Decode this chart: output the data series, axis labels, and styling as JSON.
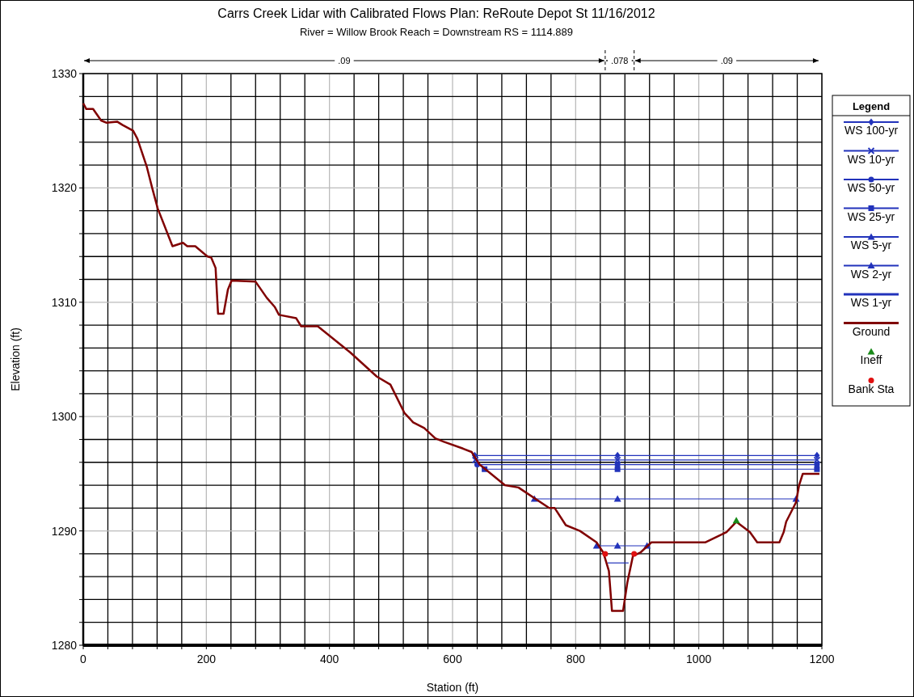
{
  "chart_data": {
    "type": "line",
    "title": "Carrs Creek Lidar with Calibrated Flows       Plan: ReRoute Depot St     11/16/2012",
    "subtitle": "River = Willow Brook   Reach = Downstream     RS = 1114.889",
    "xlabel": "Station (ft)",
    "ylabel": "Elevation (ft)",
    "legend_title": "Legend",
    "legend": "right",
    "grid": true,
    "xlim": [
      0,
      1200
    ],
    "ylim": [
      1280,
      1330
    ],
    "xticks": [
      0,
      {
        "value": 40,
        "label": null
      },
      {
        "value": 80,
        "label": null
      },
      {
        "value": 120,
        "label": null
      },
      {
        "value": 160,
        "label": null
      },
      200,
      {
        "value": 240,
        "label": null
      },
      {
        "value": 280,
        "label": null
      },
      {
        "value": 320,
        "label": null
      },
      {
        "value": 360,
        "label": null
      },
      400,
      {
        "value": 440,
        "label": null
      },
      {
        "value": 480,
        "label": null
      },
      {
        "value": 520,
        "label": null
      },
      {
        "value": 560,
        "label": null
      },
      600,
      {
        "value": 640,
        "label": null
      },
      {
        "value": 680,
        "label": null
      },
      {
        "value": 720,
        "label": null
      },
      {
        "value": 760,
        "label": null
      },
      800,
      {
        "value": 840,
        "label": null
      },
      {
        "value": 880,
        "label": null
      },
      {
        "value": 920,
        "label": null
      },
      {
        "value": 960,
        "label": null
      },
      1000,
      {
        "value": 1040,
        "label": null
      },
      {
        "value": 1080,
        "label": null
      },
      {
        "value": 1120,
        "label": null
      },
      {
        "value": 1160,
        "label": null
      },
      1200
    ],
    "yticks": [
      1280,
      {
        "value": 1282,
        "label": null
      },
      {
        "value": 1284,
        "label": null
      },
      {
        "value": 1286,
        "label": null
      },
      {
        "value": 1288,
        "label": null
      },
      1290,
      {
        "value": 1292,
        "label": null
      },
      {
        "value": 1294,
        "label": null
      },
      {
        "value": 1296,
        "label": null
      },
      {
        "value": 1298,
        "label": null
      },
      1300,
      {
        "value": 1302,
        "label": null
      },
      {
        "value": 1304,
        "label": null
      },
      {
        "value": 1306,
        "label": null
      },
      {
        "value": 1308,
        "label": null
      },
      1310,
      {
        "value": 1312,
        "label": null
      },
      {
        "value": 1314,
        "label": null
      },
      {
        "value": 1316,
        "label": null
      },
      {
        "value": 1318,
        "label": null
      },
      1320,
      {
        "value": 1322,
        "label": null
      },
      {
        "value": 1324,
        "label": null
      },
      {
        "value": 1326,
        "label": null
      },
      {
        "value": 1328,
        "label": null
      },
      1330
    ],
    "annotations": [
      ".09",
      ".078",
      ".09"
    ],
    "series": [
      {
        "name": "WS 100-yr",
        "color": "#2233bb",
        "marker": "diamond",
        "x": [
          636,
          868,
          1192
        ],
        "values": [
          1296.6,
          1296.6,
          1296.6
        ]
      },
      {
        "name": "WS 10-yr",
        "color": "#2233bb",
        "marker": "cross",
        "x": [
          637,
          868,
          1192
        ],
        "values": [
          1296.2,
          1296.2,
          1296.2
        ]
      },
      {
        "name": "WS 50-yr",
        "color": "#2233bb",
        "marker": "circle",
        "x": [
          640,
          868,
          1192
        ],
        "values": [
          1295.8,
          1295.8,
          1295.8
        ]
      },
      {
        "name": "WS 25-yr",
        "color": "#2233bb",
        "marker": "square",
        "x": [
          652,
          868,
          1192
        ],
        "values": [
          1295.4,
          1295.4,
          1295.4
        ]
      },
      {
        "name": "WS 5-yr",
        "color": "#2233bb",
        "marker": "triangle",
        "x": [
          733,
          868,
          1158
        ],
        "values": [
          1292.8,
          1292.8,
          1292.8
        ]
      },
      {
        "name": "WS 2-yr",
        "color": "#2233bb",
        "marker": "triangle",
        "x": [
          834,
          868,
          916
        ],
        "values": [
          1288.7,
          1288.7,
          1288.7
        ]
      },
      {
        "name": "WS 1-yr",
        "color": "#2233bb",
        "marker": "none",
        "x": [
          852,
          886
        ],
        "values": [
          1287.2,
          1287.2
        ]
      },
      {
        "name": "Ground",
        "color": "#800000",
        "marker": "none",
        "x": [
          0,
          5,
          16,
          29,
          38,
          55,
          64,
          81,
          88,
          103,
          112,
          121,
          145,
          162,
          169,
          182,
          202,
          208,
          215,
          219,
          228,
          235,
          241,
          280,
          298,
          311,
          318,
          346,
          354,
          381,
          434,
          477,
          499,
          522,
          536,
          554,
          572,
          586,
          617,
          631,
          644,
          685,
          707,
          757,
          766,
          784,
          807,
          834,
          845,
          854,
          859,
          877,
          884,
          893,
          905,
          923,
          1011,
          1045,
          1061,
          1083,
          1095,
          1131,
          1138,
          1142,
          1158,
          1163,
          1169,
          1196
        ],
        "values": [
          1327.4,
          1326.9,
          1326.9,
          1325.9,
          1325.7,
          1325.8,
          1325.5,
          1325.0,
          1324.3,
          1321.9,
          1320.0,
          1318.2,
          1314.9,
          1315.2,
          1314.9,
          1314.9,
          1314.0,
          1313.9,
          1313.0,
          1309.0,
          1309.0,
          1311.1,
          1311.9,
          1311.8,
          1310.4,
          1309.6,
          1308.9,
          1308.6,
          1307.9,
          1307.9,
          1305.6,
          1303.5,
          1302.8,
          1300.3,
          1299.5,
          1299.0,
          1298.1,
          1297.8,
          1297.2,
          1296.9,
          1295.8,
          1294.0,
          1293.8,
          1292.0,
          1292.0,
          1290.5,
          1290.0,
          1289.0,
          1288.1,
          1286.5,
          1283.0,
          1283.0,
          1285.5,
          1287.8,
          1288.1,
          1289.0,
          1289.0,
          1289.9,
          1290.8,
          1289.9,
          1289.0,
          1289.0,
          1289.9,
          1290.8,
          1292.5,
          1294.0,
          1295.0,
          1295.0
        ]
      },
      {
        "name": "Ineff",
        "type": "scatter",
        "color": "#1a8a1a",
        "marker": "triangle",
        "x": [
          1061
        ],
        "values": [
          1290.9
        ]
      },
      {
        "name": "Bank Sta",
        "type": "scatter",
        "color": "#e01010",
        "marker": "circle",
        "x": [
          848,
          895
        ],
        "values": [
          1288.0,
          1288.0
        ]
      }
    ]
  }
}
